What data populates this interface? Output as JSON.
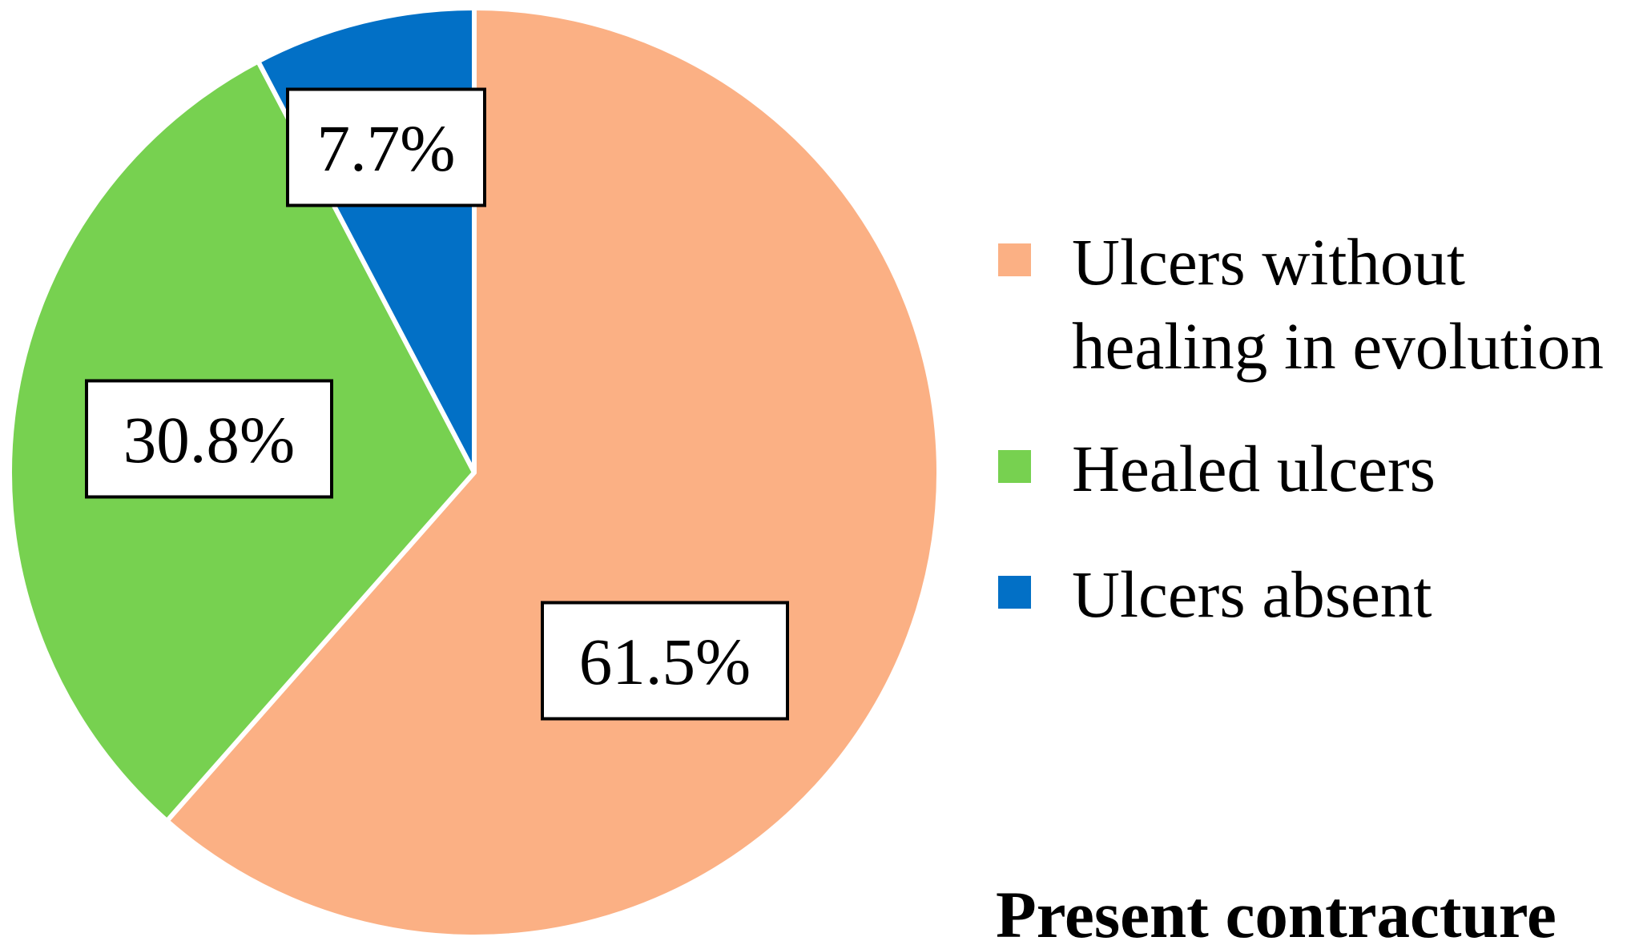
{
  "chart_data": {
    "type": "pie",
    "title": "Present contracture",
    "start_angle_deg": 0,
    "direction": "clockwise",
    "slices": [
      {
        "label": "Ulcers without healing in evolution",
        "value": 61.5,
        "display": "61.5%",
        "color": "#FBB084"
      },
      {
        "label": "Healed ulcers",
        "value": 30.8,
        "display": "30.8%",
        "color": "#77D150"
      },
      {
        "label": "Ulcers absent",
        "value": 7.7,
        "display": "7.7%",
        "color": "#0270C6"
      }
    ],
    "legend": {
      "placement": "right",
      "entries": [
        {
          "lines": [
            "Ulcers without",
            "healing in evolution"
          ],
          "color": "#FBB084"
        },
        {
          "lines": [
            "Healed ulcers"
          ],
          "color": "#77D150"
        },
        {
          "lines": [
            "Ulcers absent"
          ],
          "color": "#0270C6"
        }
      ]
    }
  }
}
